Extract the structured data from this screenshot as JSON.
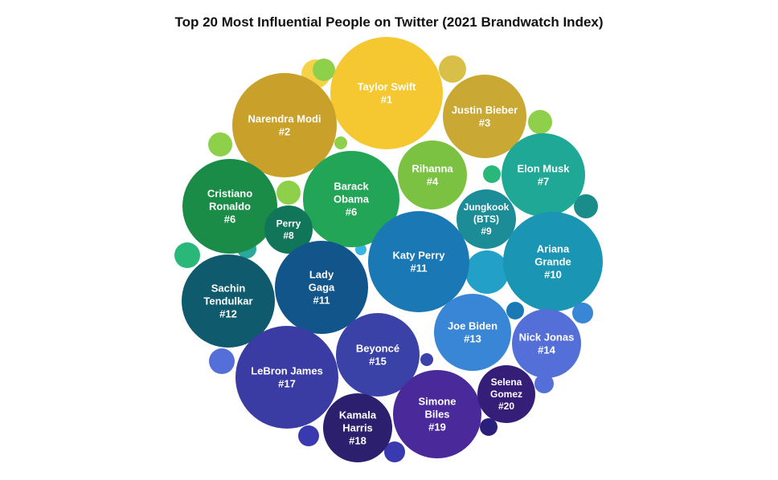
{
  "chart_data": {
    "type": "bubble",
    "title": "Top 20 Most Influential People on Twitter (2021 Brandwatch Index)",
    "bubbles": [
      {
        "name": "Taylor Swift",
        "rank": "#1",
        "lines": [
          "Taylor Swift",
          "#1"
        ],
        "color": "#f5c832"
      },
      {
        "name": "Narendra Modi",
        "rank": "#2",
        "lines": [
          "Narendra Modi",
          "#2"
        ],
        "color": "#c9a02a"
      },
      {
        "name": "Justin Bieber",
        "rank": "#3",
        "lines": [
          "Justin Bieber",
          "#3"
        ],
        "color": "#c9a833"
      },
      {
        "name": "Rihanna",
        "rank": "#4",
        "lines": [
          "Rihanna",
          "#4"
        ],
        "color": "#7bc142"
      },
      {
        "name": "Barack Obama",
        "rank": "#6",
        "lines": [
          "Barack",
          "Obama",
          "#6"
        ],
        "color": "#22a557"
      },
      {
        "name": "Cristiano Ronaldo",
        "rank": "#6",
        "lines": [
          "Cristiano",
          "Ronaldo",
          "#6"
        ],
        "color": "#1b8c47"
      },
      {
        "name": "Elon Musk",
        "rank": "#7",
        "lines": [
          "Elon Musk",
          "#7"
        ],
        "color": "#20a896"
      },
      {
        "name": "Perry",
        "rank": "#8",
        "lines": [
          "Perry",
          "#8"
        ],
        "color": "#11755a"
      },
      {
        "name": "Jungkook (BTS)",
        "rank": "#9",
        "lines": [
          "Jungkook",
          "(BTS)",
          "#9"
        ],
        "color": "#1c8c96"
      },
      {
        "name": "Ariana Grande",
        "rank": "#10",
        "lines": [
          "Ariana",
          "Grande",
          "#10"
        ],
        "color": "#1a95b3"
      },
      {
        "name": "Katy Perry",
        "rank": "#11",
        "lines": [
          "Katy Perry",
          "#11"
        ],
        "color": "#1a78b4"
      },
      {
        "name": "Lady Gaga",
        "rank": "#11",
        "lines": [
          "Lady",
          "Gaga",
          "#11"
        ],
        "color": "#12558a"
      },
      {
        "name": "Sachin Tendulkar",
        "rank": "#12",
        "lines": [
          "Sachin",
          "Tendulkar",
          "#12"
        ],
        "color": "#0f5b6d"
      },
      {
        "name": "Joe Biden",
        "rank": "#13",
        "lines": [
          "Joe Biden",
          "#13"
        ],
        "color": "#3a86d6"
      },
      {
        "name": "Nick Jonas",
        "rank": "#14",
        "lines": [
          "Nick Jonas",
          "#14"
        ],
        "color": "#5470d8"
      },
      {
        "name": "Beyoncé",
        "rank": "#15",
        "lines": [
          "Beyoncé",
          "#15"
        ],
        "color": "#3a42a8"
      },
      {
        "name": "LeBron James",
        "rank": "#17",
        "lines": [
          "LeBron James",
          "#17"
        ],
        "color": "#3b3ba4"
      },
      {
        "name": "Kamala Harris",
        "rank": "#18",
        "lines": [
          "Kamala",
          "Harris",
          "#18"
        ],
        "color": "#2c1f6e"
      },
      {
        "name": "Simone Biles",
        "rank": "#19",
        "lines": [
          "Simone",
          "Biles",
          "#19"
        ],
        "color": "#4a2a9a"
      },
      {
        "name": "Selena Gomez",
        "rank": "#20",
        "lines": [
          "Selena",
          "Gomez",
          "#20"
        ],
        "color": "#351e78"
      }
    ],
    "filler_colors": [
      "#f5d248",
      "#d8c048",
      "#8fd04a",
      "#8fd04a",
      "#8fd04a",
      "#8fd04a",
      "#8fd04a",
      "#2ab87a",
      "#2ab87a",
      "#2aa99a",
      "#3ccaaa",
      "#2ab87a",
      "#1a8c8a",
      "#22a0c8",
      "#3cb4e0",
      "#1a78b4",
      "#3a86d6",
      "#5470d8",
      "#5470d8",
      "#3a42a8",
      "#3a3ab0",
      "#3a3ab0",
      "#2a1f7a",
      "#3a3ab0",
      "#4a2a9a"
    ]
  }
}
